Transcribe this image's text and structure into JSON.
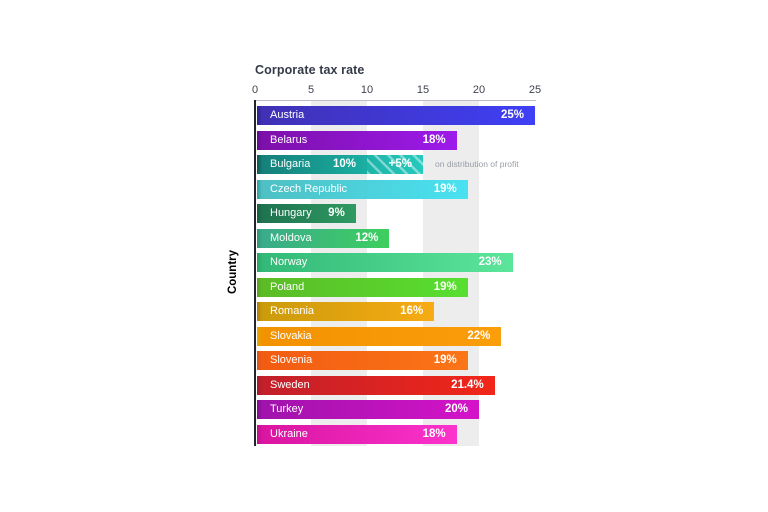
{
  "chart_data": {
    "type": "bar",
    "orientation": "horizontal",
    "title": "Corporate tax rate",
    "ylabel": "Country",
    "xlabel": "",
    "xlim": [
      0,
      25
    ],
    "xticks": [
      "0",
      "5",
      "10",
      "15",
      "20",
      "25"
    ],
    "xtick_values": [
      0,
      5,
      10,
      15,
      20,
      25
    ],
    "shaded_bands": [
      [
        5,
        10
      ],
      [
        15,
        20
      ]
    ],
    "grid": false,
    "legend_position": "none",
    "bars": [
      {
        "country": "Austria",
        "value": 25,
        "label": "25%",
        "colors": {
          "cap": "#2b2187",
          "from": "#4031b5",
          "to": "#3f3ff5"
        }
      },
      {
        "country": "Belarus",
        "value": 18,
        "label": "18%",
        "colors": {
          "cap": "#5e0c8a",
          "from": "#7d10ab",
          "to": "#9d1aeb"
        }
      },
      {
        "country": "Bulgaria",
        "value": 10,
        "label": "10%",
        "colors": {
          "cap": "#0d564e",
          "from": "#15807a",
          "to": "#1bafa3"
        },
        "extra": {
          "value": 5,
          "label": "+5%",
          "hatched": true,
          "note": "on distribution of profit",
          "colors": {
            "from": "#1db4a8",
            "to": "#27cabe"
          }
        }
      },
      {
        "country": "Czech Republic",
        "value": 19,
        "label": "19%",
        "colors": {
          "cap": "#2f9fa0",
          "from": "#4fc0c4",
          "to": "#49e2f2"
        }
      },
      {
        "country": "Hungary",
        "value": 9,
        "label": "9%",
        "colors": {
          "cap": "#155c3e",
          "from": "#1f7350",
          "to": "#2f9a61"
        }
      },
      {
        "country": "Moldova",
        "value": 12,
        "label": "12%",
        "colors": {
          "cap": "#2e9472",
          "from": "#3aab8b",
          "to": "#3ecf5f"
        }
      },
      {
        "country": "Norway",
        "value": 23,
        "label": "23%",
        "colors": {
          "cap": "#27a05e",
          "from": "#33b977",
          "to": "#5ce69b"
        }
      },
      {
        "country": "Poland",
        "value": 19,
        "label": "19%",
        "colors": {
          "cap": "#58a01e",
          "from": "#5bbc26",
          "to": "#58df31"
        }
      },
      {
        "country": "Romania",
        "value": 16,
        "label": "16%",
        "colors": {
          "cap": "#ab7d08",
          "from": "#cb9b0b",
          "to": "#f7ab14"
        }
      },
      {
        "country": "Slovakia",
        "value": 22,
        "label": "22%",
        "colors": {
          "cap": "#e3a800",
          "from": "#f39200",
          "to": "#fb9e0b"
        }
      },
      {
        "country": "Slovenia",
        "value": 19,
        "label": "19%",
        "colors": {
          "cap": "#d9571a",
          "from": "#f25c12",
          "to": "#fb7517"
        }
      },
      {
        "country": "Sweden",
        "value": 21.4,
        "label": "21.4%",
        "colors": {
          "cap": "#9e1b29",
          "from": "#c2202b",
          "to": "#f22619"
        }
      },
      {
        "country": "Turkey",
        "value": 20,
        "label": "20%",
        "colors": {
          "cap": "#7d0e89",
          "from": "#a013ac",
          "to": "#d513c9"
        }
      },
      {
        "country": "Ukraine",
        "value": 18,
        "label": "18%",
        "colors": {
          "cap": "#bb1087",
          "from": "#d915a1",
          "to": "#fc33cc"
        }
      }
    ],
    "style_colors": {
      "band": "#ededee",
      "x_axis_line": "#b9bec6",
      "y_axis_line": "#20242e",
      "title_text": "#343b47",
      "tick_text": "#3e4450",
      "bar_text": "#ffffff",
      "note_text": "#989ea6"
    }
  }
}
